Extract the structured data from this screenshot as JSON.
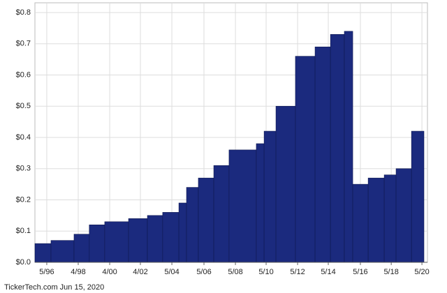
{
  "chart_data": {
    "type": "step-bar",
    "x": [
      1995.64,
      1996.67,
      1998.15,
      1999.13,
      2000.12,
      2001.65,
      2002.86,
      2003.84,
      2004.88,
      2005.37,
      2006.13,
      2007.12,
      2008.1,
      2009.85,
      2010.35,
      2011.11,
      2012.36,
      2013.62,
      2014.61,
      2015.5,
      2016.04,
      2017.03,
      2018.06,
      2018.82,
      2019.81
    ],
    "values": [
      0.06,
      0.07,
      0.09,
      0.12,
      0.13,
      0.14,
      0.15,
      0.16,
      0.19,
      0.24,
      0.27,
      0.31,
      0.36,
      0.38,
      0.42,
      0.5,
      0.66,
      0.69,
      0.73,
      0.74,
      0.25,
      0.27,
      0.28,
      0.3,
      0.42
    ],
    "color": "#1b2a7e",
    "xlim": [
      1995.64,
      2020.61
    ],
    "ylim": [
      0,
      0.8
    ],
    "yticks": [
      {
        "value": 0,
        "label": "$0.0"
      },
      {
        "value": 0.1,
        "label": "$0.1"
      },
      {
        "value": 0.2,
        "label": "$0.2"
      },
      {
        "value": 0.3,
        "label": "$0.3"
      },
      {
        "value": 0.4,
        "label": "$0.4"
      },
      {
        "value": 0.5,
        "label": "$0.5"
      },
      {
        "value": 0.6,
        "label": "$0.6"
      },
      {
        "value": 0.7,
        "label": "$0.7"
      },
      {
        "value": 0.8,
        "label": "$0.8"
      }
    ],
    "xticks": [
      {
        "value": 1996.4,
        "label": "5/96"
      },
      {
        "value": 1998.42,
        "label": "4/98"
      },
      {
        "value": 2000.44,
        "label": "4/00"
      },
      {
        "value": 2002.41,
        "label": "4/02"
      },
      {
        "value": 2004.43,
        "label": "5/04"
      },
      {
        "value": 2006.49,
        "label": "5/06"
      },
      {
        "value": 2008.51,
        "label": "5/08"
      },
      {
        "value": 2010.48,
        "label": "5/10"
      },
      {
        "value": 2012.5,
        "label": "5/12"
      },
      {
        "value": 2014.47,
        "label": "5/14"
      },
      {
        "value": 2016.53,
        "label": "5/16"
      },
      {
        "value": 2018.51,
        "label": "5/18"
      },
      {
        "value": 2020.48,
        "label": "5/20"
      }
    ],
    "grid": true,
    "source": "TickerTech.com  Jun 15, 2020"
  }
}
